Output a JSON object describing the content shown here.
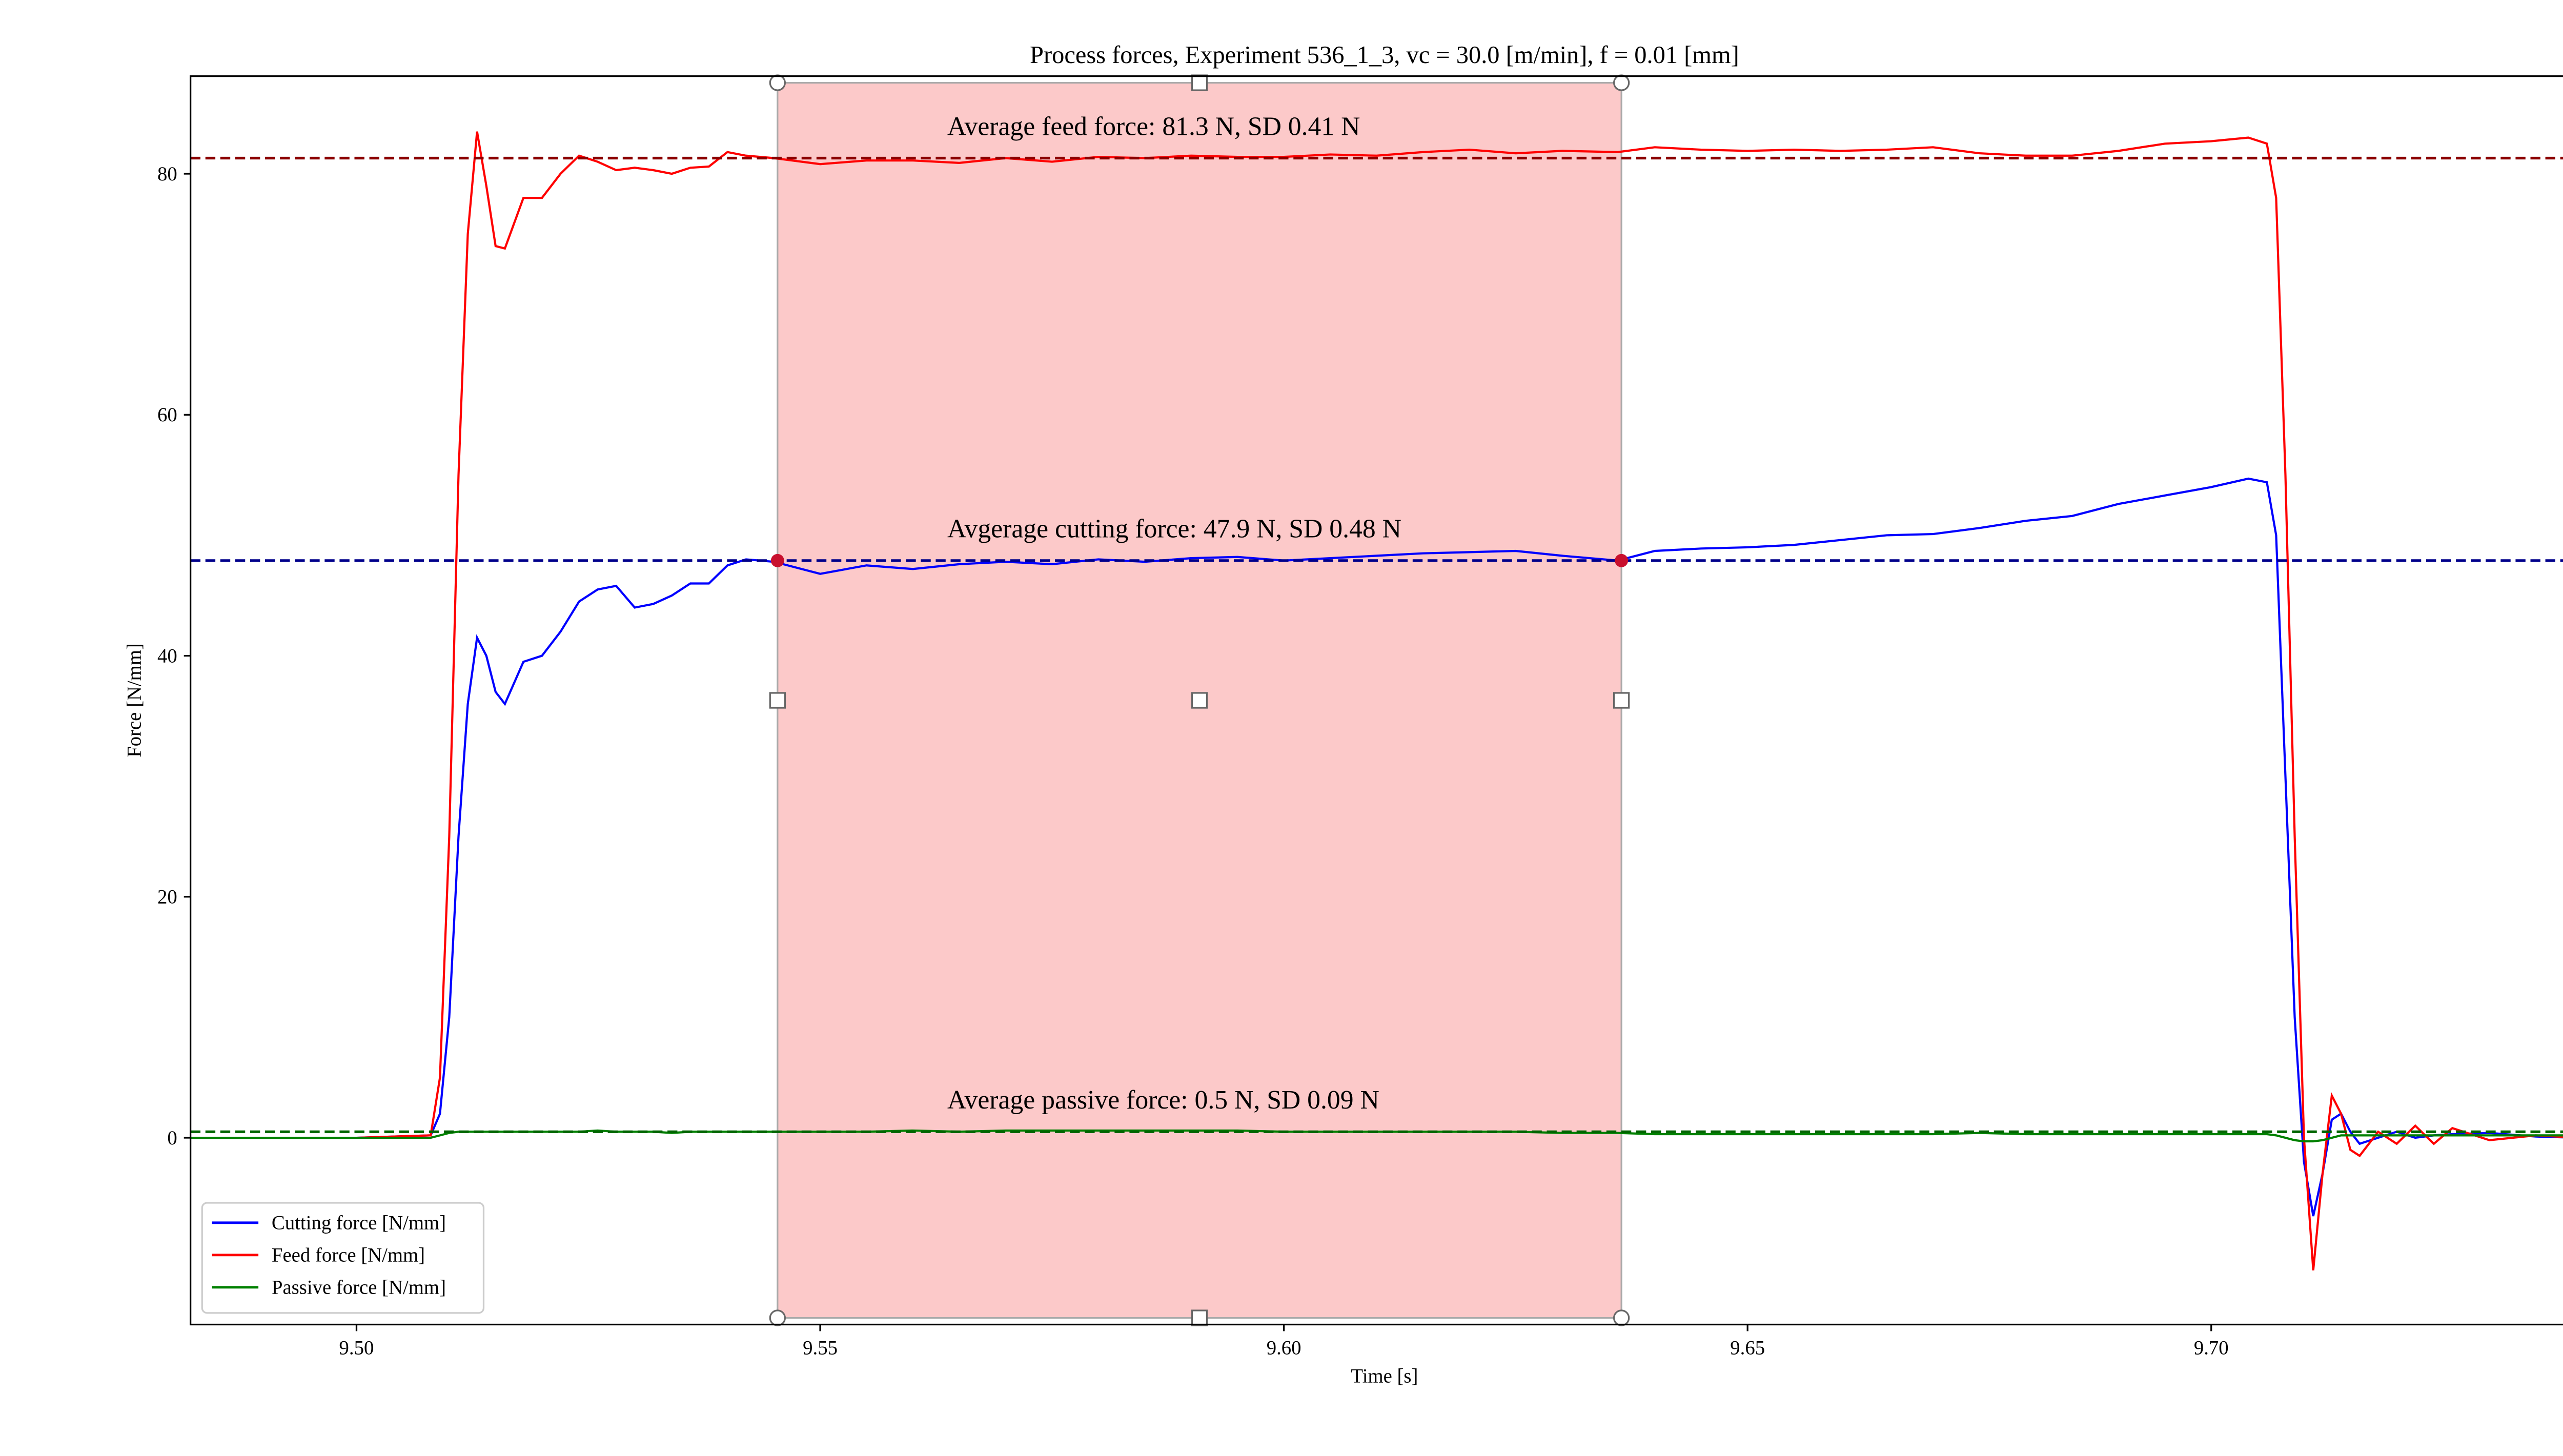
{
  "chart_data": {
    "type": "line",
    "title": "Process forces, Experiment 536_1_3, vc = 30.0 [m/min], f = 0.01 [mm]",
    "xlabel": "Time [s]",
    "ylabel": "Force [N/mm]",
    "x": [
      9.482,
      9.49,
      9.5,
      9.508,
      9.509,
      9.51,
      9.511,
      9.512,
      9.513,
      9.514,
      9.515,
      9.516,
      9.518,
      9.52,
      9.522,
      9.524,
      9.526,
      9.528,
      9.53,
      9.532,
      9.534,
      9.536,
      9.538,
      9.54,
      9.542,
      9.545,
      9.55,
      9.555,
      9.56,
      9.565,
      9.57,
      9.575,
      9.58,
      9.585,
      9.59,
      9.595,
      9.6,
      9.605,
      9.61,
      9.615,
      9.62,
      9.625,
      9.63,
      9.636,
      9.64,
      9.645,
      9.65,
      9.655,
      9.66,
      9.665,
      9.67,
      9.675,
      9.68,
      9.685,
      9.69,
      9.695,
      9.7,
      9.704,
      9.706,
      9.707,
      9.708,
      9.709,
      9.71,
      9.711,
      9.712,
      9.713,
      9.714,
      9.715,
      9.716,
      9.718,
      9.72,
      9.722,
      9.724,
      9.726,
      9.73,
      9.735,
      9.7396
    ],
    "series": [
      {
        "name": "Cutting force [N/mm]",
        "color": "#0000ff",
        "values": [
          0,
          0,
          0,
          0.2,
          2,
          10,
          25,
          36,
          41.5,
          40,
          37,
          36,
          39.5,
          40,
          42,
          44.5,
          45.5,
          45.8,
          44,
          44.3,
          45,
          46,
          46,
          47.5,
          48,
          47.8,
          46.8,
          47.5,
          47.2,
          47.6,
          47.8,
          47.6,
          48,
          47.8,
          48.1,
          48.2,
          47.9,
          48.1,
          48.3,
          48.5,
          48.6,
          48.7,
          48.3,
          47.9,
          48.7,
          48.9,
          49,
          49.2,
          49.6,
          50,
          50.1,
          50.6,
          51.2,
          51.6,
          52.6,
          53.3,
          54,
          54.7,
          54.4,
          50,
          30,
          10,
          -2,
          -6.5,
          -3,
          1.5,
          2,
          0.5,
          -0.5,
          0,
          0.5,
          0,
          0.2,
          0.3,
          0.4,
          0.1,
          0
        ]
      },
      {
        "name": "Feed force [N/mm]",
        "color": "#ff0000",
        "values": [
          0,
          0,
          0,
          0.2,
          5,
          25,
          55,
          75,
          83.5,
          79,
          74,
          73.8,
          78,
          78,
          80,
          81.5,
          81,
          80.3,
          80.5,
          80.3,
          80,
          80.5,
          80.6,
          81.8,
          81.5,
          81.3,
          80.8,
          81.1,
          81.1,
          80.9,
          81.3,
          81,
          81.4,
          81.3,
          81.5,
          81.4,
          81.4,
          81.6,
          81.5,
          81.8,
          82,
          81.7,
          81.9,
          81.8,
          82.2,
          82,
          81.9,
          82,
          81.9,
          82,
          82.2,
          81.7,
          81.5,
          81.5,
          81.9,
          82.5,
          82.7,
          83,
          82.5,
          78,
          55,
          25,
          0,
          -11,
          -3,
          3.5,
          2,
          -1,
          -1.5,
          0.5,
          -0.5,
          1,
          -0.5,
          0.8,
          -0.2,
          0.2,
          0
        ]
      },
      {
        "name": "Passive force [N/mm]",
        "color": "#008000",
        "values": [
          0,
          0,
          0,
          0,
          0.2,
          0.4,
          0.5,
          0.5,
          0.5,
          0.5,
          0.5,
          0.5,
          0.5,
          0.5,
          0.5,
          0.5,
          0.6,
          0.5,
          0.5,
          0.5,
          0.4,
          0.5,
          0.5,
          0.5,
          0.5,
          0.5,
          0.5,
          0.5,
          0.6,
          0.5,
          0.6,
          0.6,
          0.6,
          0.6,
          0.6,
          0.6,
          0.5,
          0.5,
          0.5,
          0.5,
          0.5,
          0.5,
          0.4,
          0.4,
          0.3,
          0.3,
          0.3,
          0.3,
          0.3,
          0.3,
          0.3,
          0.4,
          0.3,
          0.3,
          0.3,
          0.3,
          0.3,
          0.3,
          0.3,
          0.2,
          0,
          -0.2,
          -0.3,
          -0.3,
          -0.2,
          0,
          0.2,
          0.2,
          0.2,
          0.2,
          0.2,
          0.2,
          0.2,
          0.2,
          0.2,
          0.2,
          0.2
        ]
      }
    ],
    "hlines": [
      {
        "value": 81.3,
        "color": "#8b0000",
        "label": "Average feed force: 81.3 N, SD 0.41 N"
      },
      {
        "value": 47.9,
        "color": "#00008b",
        "label": "Avgerage cutting force: 47.9 N, SD 0.48 N"
      },
      {
        "value": 0.5,
        "color": "#006400",
        "label": "Average passive force: 0.5 N, SD 0.09 N"
      }
    ],
    "span": [
      9.5454,
      9.6364
    ],
    "span_color": "#fcc9c9",
    "xlim": [
      9.4821,
      9.7396
    ],
    "ylim": [
      -15.5,
      88.1
    ],
    "xticks": [
      {
        "value": 9.5,
        "label": "9.50"
      },
      9.55,
      {
        "value": 9.6,
        "label": "9.60"
      },
      9.65,
      {
        "value": 9.7,
        "label": "9.70"
      }
    ],
    "yticks": [
      0,
      20,
      40,
      60,
      80
    ],
    "legend": "lower left"
  }
}
